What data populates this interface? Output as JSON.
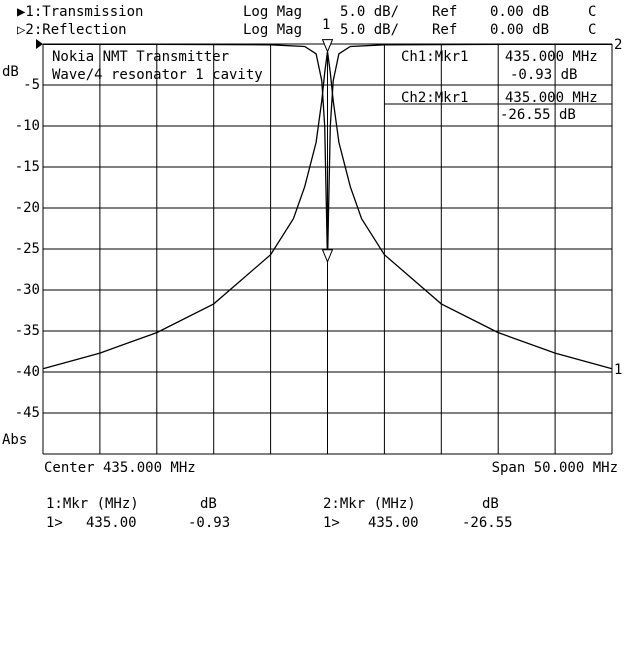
{
  "header": {
    "channels": [
      {
        "label": "▶1:Transmission",
        "format": "Log Mag",
        "scale": "5.0 dB/",
        "ref_label": "Ref",
        "ref": "0.00 dB",
        "flag": "C"
      },
      {
        "label": "▷2:Reflection",
        "format": "Log Mag",
        "scale": "5.0 dB/",
        "ref_label": "Ref",
        "ref": "0.00 dB",
        "flag": "C"
      }
    ]
  },
  "annotation": {
    "line1": "Nokia NMT Transmitter",
    "line2": "Wave/4 resonator 1 cavity"
  },
  "marker_readout": [
    {
      "label": "Ch1:Mkr1",
      "freq": "435.000 MHz",
      "value": "-0.93 dB"
    },
    {
      "label": "Ch2:Mkr1",
      "freq": "435.000 MHz",
      "value": "-26.55 dB"
    }
  ],
  "footer": {
    "center": "Center 435.000 MHz",
    "span": "Span 50.000 MHz"
  },
  "marker_tables": [
    {
      "header_mkr": "1:Mkr (MHz)",
      "header_unit": "dB",
      "row_id": "1>",
      "row_freq": "435.00",
      "row_value": "-0.93"
    },
    {
      "header_mkr": "2:Mkr (MHz)",
      "header_unit": "dB",
      "row_id": "1>",
      "row_freq": "435.00",
      "row_value": "-26.55"
    }
  ],
  "chart_data": {
    "type": "line",
    "ylabel": "dB",
    "ylabel_bottom": "Abs",
    "ylim": [
      -50,
      0
    ],
    "xlim": [
      410,
      460
    ],
    "y_ticks": [
      "-5",
      "-10",
      "-15",
      "-20",
      "-25",
      "-30",
      "-35",
      "-40",
      "-45"
    ],
    "grid": true,
    "trace_end_labels": {
      "ch1": "1",
      "ch2": "2"
    },
    "marker_label": "1",
    "series": [
      {
        "name": "1",
        "color": "#000000",
        "x": [
          410,
          415,
          420,
          425,
          430,
          432,
          433,
          434,
          434.5,
          434.75,
          435,
          435.25,
          435.5,
          436,
          437,
          438,
          440,
          445,
          450,
          455,
          460
        ],
        "y": [
          -39.6,
          -37.7,
          -35.2,
          -31.7,
          -25.7,
          -21.3,
          -17.4,
          -12.0,
          -6.9,
          -3.5,
          -0.93,
          -3.5,
          -6.9,
          -12.0,
          -17.4,
          -21.3,
          -25.7,
          -31.7,
          -35.2,
          -37.7,
          -39.6
        ]
      },
      {
        "name": "2",
        "color": "#000000",
        "x": [
          410,
          420,
          430,
          433,
          434,
          434.5,
          434.75,
          435,
          435.25,
          435.5,
          436,
          437,
          440,
          450,
          460
        ],
        "y": [
          -0.05,
          -0.05,
          -0.1,
          -0.3,
          -1.2,
          -4.5,
          -10,
          -26.55,
          -10,
          -4.5,
          -1.2,
          -0.3,
          -0.1,
          -0.05,
          -0.05
        ]
      }
    ]
  }
}
